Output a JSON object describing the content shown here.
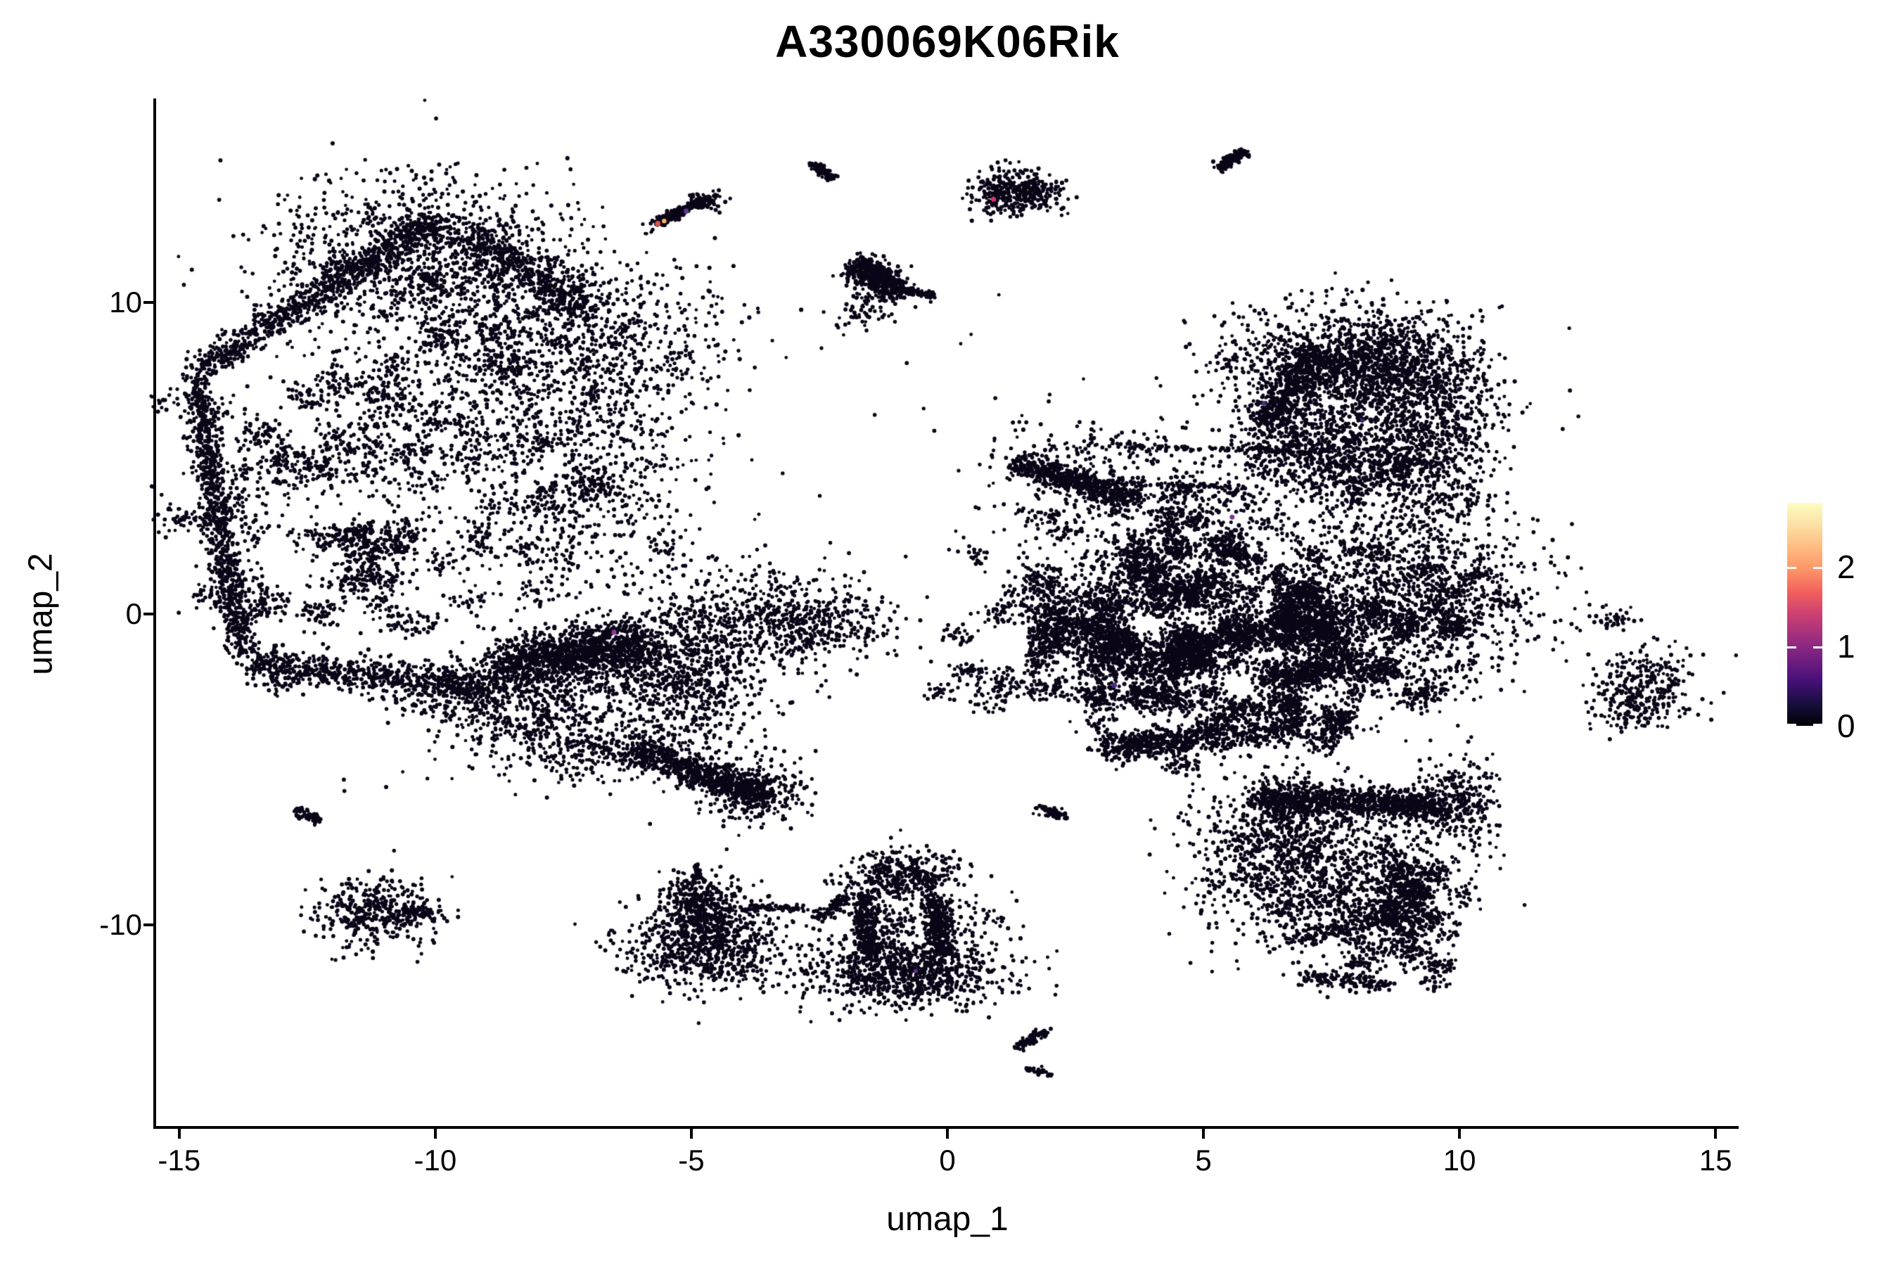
{
  "title": "A330069K06Rik",
  "chart_data": {
    "type": "scatter",
    "title": "A330069K06Rik",
    "xlabel": "umap_1",
    "ylabel": "umap_2",
    "xlim": [
      -15.45,
      15.45
    ],
    "ylim": [
      -16.49,
      16.49
    ],
    "x_ticks": [
      "-15",
      "-10",
      "-5",
      "0",
      "5",
      "10",
      "15"
    ],
    "x_tick_values": [
      -15,
      -10,
      -5,
      0,
      5,
      10,
      15
    ],
    "y_ticks": [
      "-10",
      "0",
      "10"
    ],
    "y_tick_values": [
      -10,
      0,
      10
    ],
    "grid": false,
    "legend_position": "right",
    "point_color": "#0b0617",
    "point_radius": 2.7,
    "seed": 42,
    "colorbar": {
      "ticks": [
        "0",
        "1",
        "2"
      ],
      "tick_values": [
        0,
        1,
        2
      ],
      "vmax": 2.81,
      "stops": [
        "#000004",
        "#180f3e",
        "#451077",
        "#721f81",
        "#9f2f7f",
        "#cd4071",
        "#f1605d",
        "#fd9567",
        "#febb81",
        "#fcdfa4",
        "#fcfdbf"
      ]
    },
    "clusters": [
      {
        "t": "gauss",
        "x": -10.3,
        "y": 11.4,
        "rx": 1.5,
        "ry": 1.3,
        "n": 1100
      },
      {
        "t": "streak",
        "x1": -9.9,
        "y1": 12.75,
        "x2": -14.55,
        "y2": 7.9,
        "w": 0.42,
        "n": 850
      },
      {
        "t": "streak",
        "x1": -14.7,
        "y1": 7.5,
        "x2": -14.2,
        "y2": 3.0,
        "w": 0.33,
        "n": 480
      },
      {
        "t": "streak",
        "x1": -14.25,
        "y1": 3.0,
        "x2": -13.75,
        "y2": -1.3,
        "w": 0.33,
        "n": 430
      },
      {
        "t": "streak",
        "x1": -9.4,
        "y1": 12.4,
        "x2": -7.0,
        "y2": 9.7,
        "w": 0.55,
        "n": 420
      },
      {
        "t": "gauss",
        "x": -7.3,
        "y": 8.7,
        "rx": 1.45,
        "ry": 1.5,
        "n": 950
      },
      {
        "t": "clumps",
        "x": -11.3,
        "y": 3.6,
        "rx": 2.9,
        "ry": 3.5,
        "k": 90,
        "per": 26,
        "cr": 0.22
      },
      {
        "t": "gauss",
        "x": -9.4,
        "y": 6.0,
        "rx": 2.0,
        "ry": 2.4,
        "n": 700
      },
      {
        "t": "gauss",
        "x": -6.7,
        "y": 4.3,
        "rx": 0.9,
        "ry": 2.0,
        "n": 380
      },
      {
        "t": "streak",
        "x1": -13.6,
        "y1": -1.6,
        "x2": -9.2,
        "y2": -2.3,
        "w": 0.55,
        "n": 650
      },
      {
        "t": "gauss",
        "x": -9.25,
        "y": -2.45,
        "rx": 0.5,
        "ry": 0.42,
        "n": 220
      },
      {
        "t": "streak",
        "x1": -11.0,
        "y1": -2.8,
        "x2": -6.4,
        "y2": -4.5,
        "w": 0.3,
        "n": 90
      },
      {
        "t": "streak",
        "x1": -8.75,
        "y1": -1.7,
        "x2": -5.9,
        "y2": -0.95,
        "w": 0.85,
        "n": 1250
      },
      {
        "t": "gauss",
        "x": -5.05,
        "y": -1.85,
        "rx": 0.8,
        "ry": 1.5,
        "n": 1050
      },
      {
        "t": "gauss",
        "x": -7.95,
        "y": -3.15,
        "rx": 0.9,
        "ry": 0.95,
        "n": 480
      },
      {
        "t": "gauss",
        "x": -6.9,
        "y": -4.6,
        "rx": 0.55,
        "ry": 0.5,
        "n": 140
      },
      {
        "t": "gauss",
        "x": -2.8,
        "y": -0.2,
        "rx": 0.85,
        "ry": 0.68,
        "n": 560
      },
      {
        "t": "streak",
        "x1": -6.05,
        "y1": -4.35,
        "x2": -3.55,
        "y2": -5.85,
        "w": 0.5,
        "n": 750
      },
      {
        "t": "gauss",
        "x": -3.72,
        "y": -5.72,
        "rx": 0.45,
        "ry": 0.5,
        "n": 260
      },
      {
        "t": "streak",
        "x1": -12.7,
        "y1": -6.28,
        "x2": -12.25,
        "y2": -6.68,
        "w": 0.16,
        "n": 60
      },
      {
        "t": "gauss",
        "x": -11.15,
        "y": -9.62,
        "rx": 0.62,
        "ry": 0.55,
        "n": 400
      },
      {
        "t": "streak",
        "x1": -10.6,
        "y1": -9.45,
        "x2": -9.95,
        "y2": -9.7,
        "w": 0.2,
        "n": 55
      },
      {
        "t": "gauss",
        "x": -4.85,
        "y": -9.25,
        "rx": 0.38,
        "ry": 0.45,
        "n": 300
      },
      {
        "t": "gauss",
        "x": -4.72,
        "y": -10.6,
        "rx": 0.78,
        "ry": 0.72,
        "n": 850
      },
      {
        "t": "streak",
        "x1": -4.9,
        "y1": -8.05,
        "x2": -4.87,
        "y2": -8.55,
        "w": 0.08,
        "n": 40
      },
      {
        "t": "streak",
        "x1": -3.85,
        "y1": -9.42,
        "x2": -2.72,
        "y2": -9.45,
        "w": 0.1,
        "n": 75
      },
      {
        "t": "streak",
        "x1": -2.55,
        "y1": -9.8,
        "x2": -2.0,
        "y2": -9.1,
        "w": 0.18,
        "n": 95
      },
      {
        "t": "gauss",
        "x": -0.9,
        "y": -8.45,
        "rx": 0.58,
        "ry": 0.42,
        "n": 400
      },
      {
        "t": "streak",
        "x1": -1.62,
        "y1": -9.0,
        "x2": -1.52,
        "y2": -11.05,
        "w": 0.28,
        "n": 300
      },
      {
        "t": "streak",
        "x1": -0.22,
        "y1": -9.15,
        "x2": -0.08,
        "y2": -10.95,
        "w": 0.28,
        "n": 300
      },
      {
        "t": "gauss",
        "x": -0.85,
        "y": -11.55,
        "rx": 0.95,
        "ry": 0.55,
        "n": 900
      },
      {
        "t": "gauss",
        "x": -0.88,
        "y": -10.1,
        "rx": 0.5,
        "ry": 0.65,
        "n": 130
      },
      {
        "t": "gauss",
        "x": 0.62,
        "y": -9.85,
        "rx": 0.4,
        "ry": 0.5,
        "n": 50
      },
      {
        "t": "streak",
        "x1": 1.35,
        "y1": -13.95,
        "x2": 1.95,
        "y2": -13.38,
        "w": 0.14,
        "n": 75
      },
      {
        "t": "streak",
        "x1": 1.55,
        "y1": -14.6,
        "x2": 2.08,
        "y2": -14.78,
        "w": 0.1,
        "n": 40
      },
      {
        "t": "streak",
        "x1": 1.32,
        "y1": 4.82,
        "x2": 3.7,
        "y2": 3.62,
        "w": 0.42,
        "n": 600
      },
      {
        "t": "gauss",
        "x": 2.7,
        "y": 5.2,
        "rx": 1.1,
        "ry": 0.5,
        "n": 130
      },
      {
        "t": "streak",
        "x1": 3.3,
        "y1": 5.35,
        "x2": 7.5,
        "y2": 5.22,
        "w": 0.1,
        "n": 115
      },
      {
        "t": "streak",
        "x1": 1.95,
        "y1": 4.28,
        "x2": 5.5,
        "y2": 4.05,
        "w": 0.1,
        "n": 85
      },
      {
        "t": "gauss",
        "x": 4.6,
        "y": 3.1,
        "rx": 1.9,
        "ry": 1.05,
        "n": 480
      },
      {
        "t": "clumps",
        "x": 5.6,
        "y": -0.75,
        "rx": 2.35,
        "ry": 2.05,
        "k": 160,
        "per": 40,
        "cr": 0.18
      },
      {
        "t": "clumps",
        "x": 2.6,
        "y": -0.6,
        "rx": 1.5,
        "ry": 1.95,
        "k": 70,
        "per": 26,
        "cr": 0.2
      },
      {
        "t": "gauss",
        "x": 8.75,
        "y": 0.3,
        "rx": 1.35,
        "ry": 1.6,
        "n": 1450
      },
      {
        "t": "streak",
        "x1": 3.0,
        "y1": -4.35,
        "x2": 7.0,
        "y2": -3.65,
        "w": 0.5,
        "n": 700
      },
      {
        "t": "streak",
        "x1": 6.05,
        "y1": 5.3,
        "x2": 9.2,
        "y2": 4.6,
        "w": 1.1,
        "n": 750
      },
      {
        "t": "gauss",
        "x": 9.55,
        "y": 4.9,
        "rx": 0.6,
        "ry": 1.5,
        "n": 500
      },
      {
        "t": "gauss",
        "x": 7.6,
        "y": 8.0,
        "rx": 1.15,
        "ry": 0.92,
        "n": 1250
      },
      {
        "t": "gauss",
        "x": 9.1,
        "y": 7.55,
        "rx": 0.78,
        "ry": 0.95,
        "n": 620
      },
      {
        "t": "streak",
        "x1": 6.25,
        "y1": 6.1,
        "x2": 7.3,
        "y2": 8.5,
        "w": 0.42,
        "n": 450
      },
      {
        "t": "gauss",
        "x": 8.1,
        "y": 5.95,
        "rx": 1.35,
        "ry": 0.6,
        "n": 330
      },
      {
        "t": "streak",
        "x1": 6.1,
        "y1": -5.95,
        "x2": 9.55,
        "y2": -6.15,
        "w": 0.5,
        "n": 950
      },
      {
        "t": "gauss",
        "x": 9.9,
        "y": -6.05,
        "rx": 0.42,
        "ry": 0.58,
        "n": 320
      },
      {
        "t": "gauss",
        "x": 6.6,
        "y": -7.7,
        "rx": 0.88,
        "ry": 1.25,
        "n": 950
      },
      {
        "t": "clumps",
        "x": 8.55,
        "y": -9.55,
        "rx": 1.05,
        "ry": 1.35,
        "k": 55,
        "per": 24,
        "cr": 0.18
      },
      {
        "t": "gauss",
        "x": 7.55,
        "y": -8.2,
        "rx": 1.35,
        "ry": 1.2,
        "n": 420
      },
      {
        "t": "streak",
        "x1": 6.9,
        "y1": -11.65,
        "x2": 8.6,
        "y2": -11.9,
        "w": 0.3,
        "n": 140
      },
      {
        "t": "streak",
        "x1": 1.72,
        "y1": -6.2,
        "x2": 2.32,
        "y2": -6.55,
        "w": 0.13,
        "n": 60
      },
      {
        "t": "gauss",
        "x": 13.62,
        "y": -2.42,
        "rx": 0.48,
        "ry": 0.62,
        "n": 300
      },
      {
        "t": "gauss",
        "x": 13.1,
        "y": -3.25,
        "rx": 0.28,
        "ry": 0.28,
        "n": 30
      },
      {
        "t": "streak",
        "x1": -5.68,
        "y1": 12.52,
        "x2": -4.82,
        "y2": 13.25,
        "w": 0.13,
        "n": 240
      },
      {
        "t": "gauss",
        "x": -4.73,
        "y": 13.3,
        "rx": 0.15,
        "ry": 0.13,
        "n": 70
      },
      {
        "t": "gauss",
        "x": -5.82,
        "y": 12.27,
        "rx": 0.05,
        "ry": 0.05,
        "n": 5
      },
      {
        "t": "streak",
        "x1": -2.66,
        "y1": 14.45,
        "x2": -2.2,
        "y2": 13.97,
        "w": 0.12,
        "n": 100
      },
      {
        "t": "gauss",
        "x": 1.35,
        "y": 13.52,
        "rx": 0.44,
        "ry": 0.34,
        "n": 380
      },
      {
        "t": "streak",
        "x1": 5.29,
        "y1": 14.27,
        "x2": 5.82,
        "y2": 14.85,
        "w": 0.14,
        "n": 130
      },
      {
        "t": "streak",
        "x1": -1.78,
        "y1": 11.25,
        "x2": -0.95,
        "y2": 10.25,
        "w": 0.4,
        "n": 520
      },
      {
        "t": "streak",
        "x1": -0.85,
        "y1": 10.38,
        "x2": -0.3,
        "y2": 10.18,
        "w": 0.12,
        "n": 80
      },
      {
        "t": "gauss",
        "x": -1.55,
        "y": 9.75,
        "rx": 0.32,
        "ry": 0.28,
        "n": 70
      },
      {
        "t": "gauss",
        "x": -3.3,
        "y": 2.3,
        "rx": 2.2,
        "ry": 2.6,
        "n": 16
      },
      {
        "t": "gauss",
        "x": 0.3,
        "y": 7.6,
        "rx": 1.6,
        "ry": 1.4,
        "n": 10
      },
      {
        "t": "gauss",
        "x": -10.5,
        "y": -5.0,
        "rx": 2.0,
        "ry": 1.2,
        "n": 8
      }
    ],
    "colored_points": [
      {
        "x": -5.655,
        "y": 12.52,
        "color": "#e1514b"
      },
      {
        "x": -5.53,
        "y": 12.6,
        "color": "#fbb269"
      },
      {
        "x": -5.1,
        "y": 12.92,
        "color": "#5f3a8f"
      },
      {
        "x": 0.9,
        "y": 13.3,
        "color": "#d9326e"
      },
      {
        "x": 6.18,
        "y": 6.75,
        "color": "#46327e"
      },
      {
        "x": 8.1,
        "y": 6.2,
        "color": "#3b2a72"
      },
      {
        "x": 5.56,
        "y": 3.1,
        "color": "#7b3a8c"
      },
      {
        "x": -6.51,
        "y": -0.6,
        "color": "#94349e"
      },
      {
        "x": -0.62,
        "y": -11.47,
        "color": "#5a3191"
      },
      {
        "x": 3.26,
        "y": -2.3,
        "color": "#4a2d80"
      }
    ]
  }
}
